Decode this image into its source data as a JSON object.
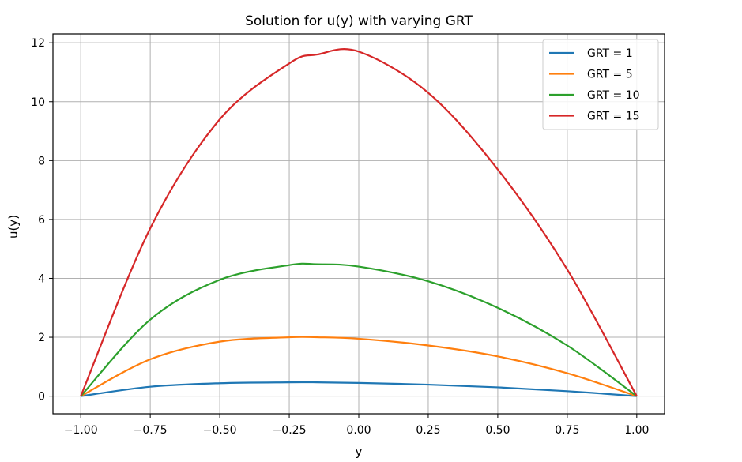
{
  "chart_data": {
    "type": "line",
    "title": "Solution for u(y) with varying GRT",
    "xlabel": "y",
    "ylabel": "u(y)",
    "xlim": [
      -1.1,
      1.1
    ],
    "ylim": [
      -0.6,
      12.3
    ],
    "xticks": [
      -1.0,
      -0.75,
      -0.5,
      -0.25,
      0.0,
      0.25,
      0.5,
      0.75,
      1.0
    ],
    "xtick_labels": [
      "−1.00",
      "−0.75",
      "−0.50",
      "−0.25",
      "0.00",
      "0.25",
      "0.50",
      "0.75",
      "1.00"
    ],
    "yticks": [
      0,
      2,
      4,
      6,
      8,
      10,
      12
    ],
    "ytick_labels": [
      "0",
      "2",
      "4",
      "6",
      "8",
      "10",
      "12"
    ],
    "grid": true,
    "legend_position": "top-right",
    "x": [
      -1.0,
      -0.75,
      -0.5,
      -0.25,
      -0.15,
      0.0,
      0.25,
      0.5,
      0.75,
      1.0
    ],
    "series": [
      {
        "name": "GRT = 1",
        "color": "#1f77b4",
        "values": [
          0,
          0.32,
          0.44,
          0.47,
          0.47,
          0.45,
          0.39,
          0.3,
          0.17,
          0
        ]
      },
      {
        "name": "GRT = 5",
        "color": "#ff7f0e",
        "values": [
          0,
          1.25,
          1.85,
          2.0,
          2.0,
          1.95,
          1.72,
          1.35,
          0.78,
          0
        ]
      },
      {
        "name": "GRT = 10",
        "color": "#2ca02c",
        "values": [
          0,
          2.6,
          3.95,
          4.45,
          4.48,
          4.4,
          3.9,
          3.0,
          1.72,
          0
        ]
      },
      {
        "name": "GRT = 15",
        "color": "#d62728",
        "values": [
          0,
          5.7,
          9.4,
          11.3,
          11.6,
          11.7,
          10.3,
          7.7,
          4.3,
          0
        ]
      }
    ]
  }
}
